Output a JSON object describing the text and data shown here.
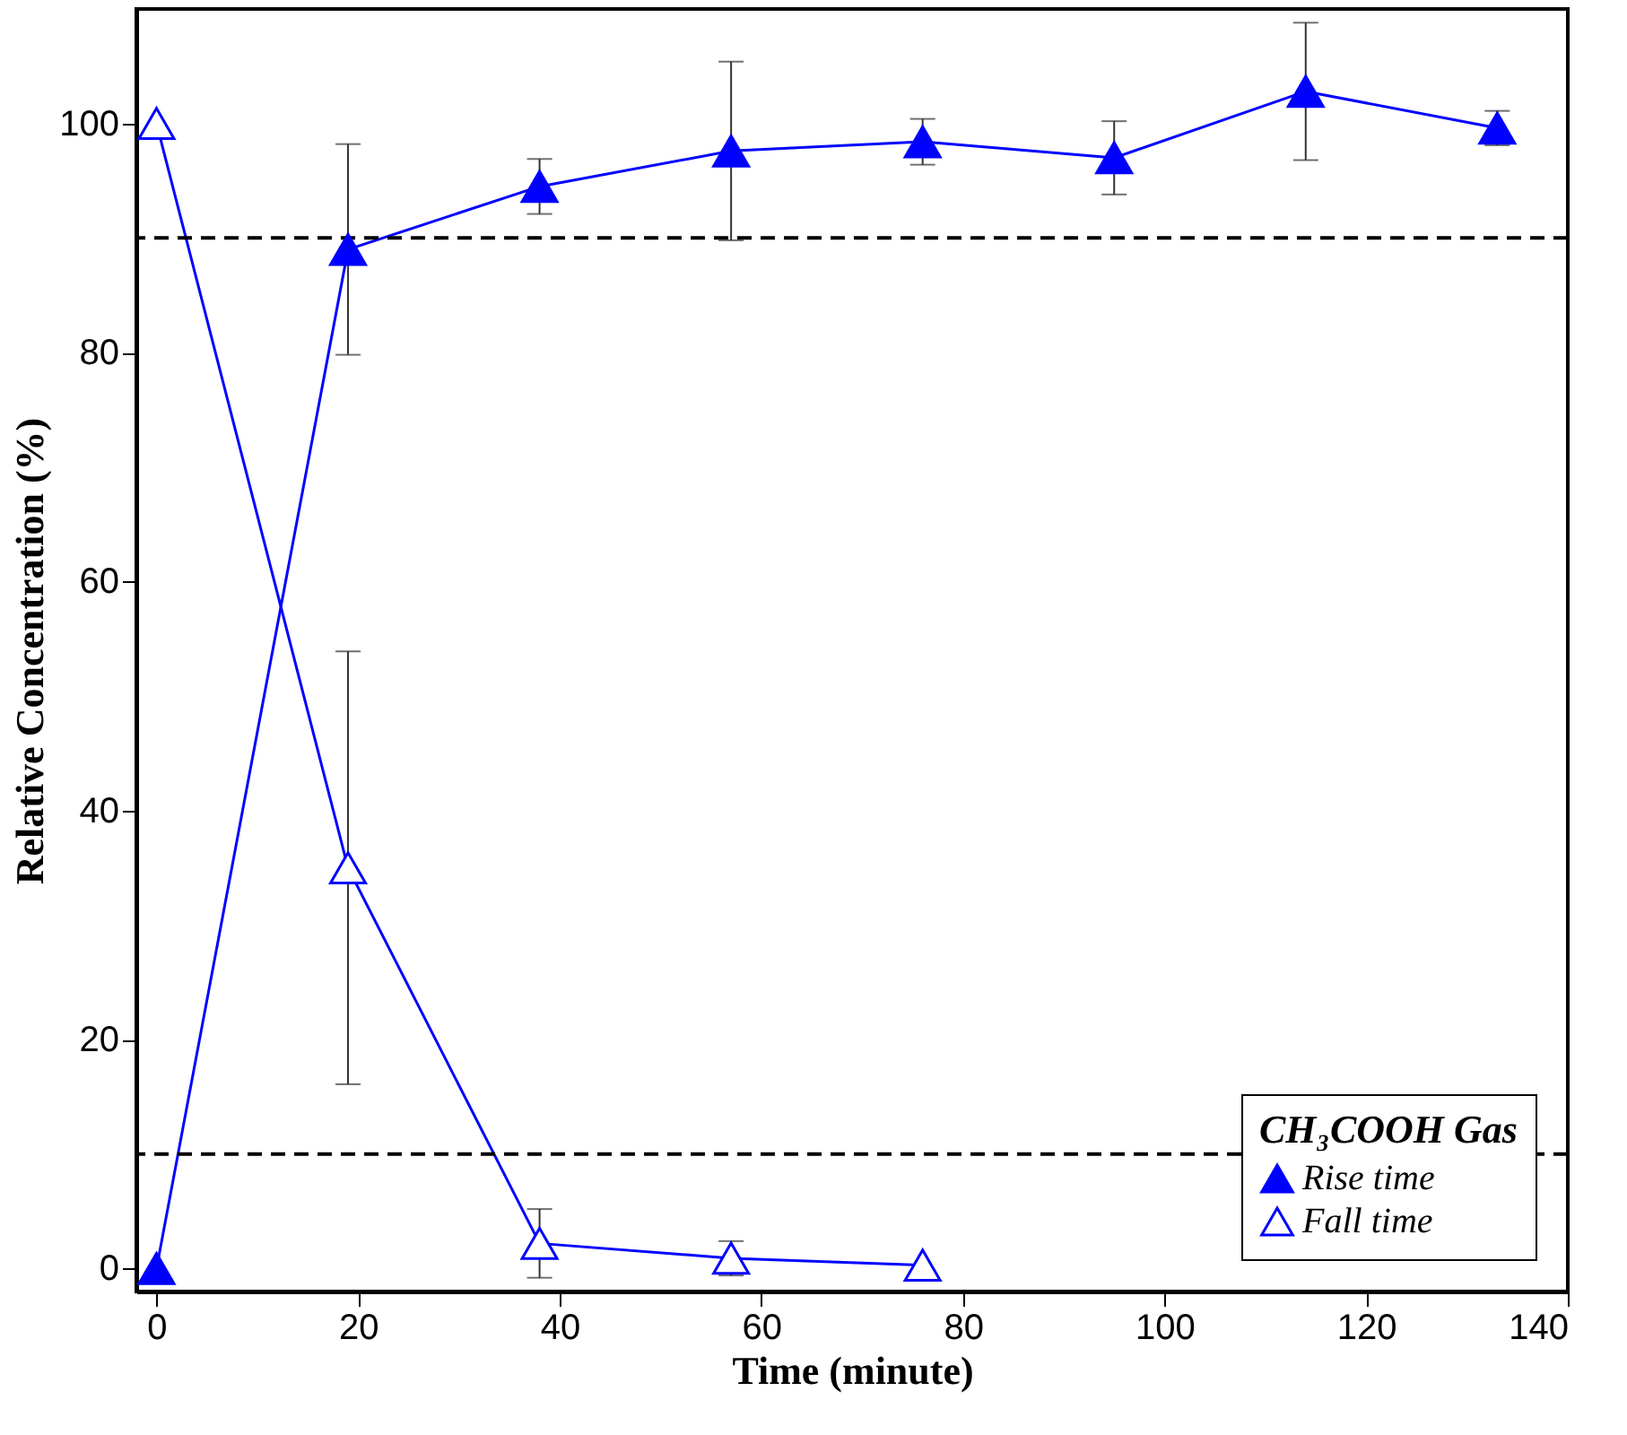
{
  "chart_data": {
    "type": "line",
    "xlabel": "Time (minute)",
    "ylabel": "Relative Concentration (%)",
    "legend_title": "CH₃COOH Gas",
    "xlim": [
      -2,
      140
    ],
    "xticks": [
      0,
      20,
      40,
      60,
      80,
      100,
      120,
      140
    ],
    "ylim": [
      -2,
      110
    ],
    "yticks": [
      0,
      20,
      40,
      60,
      80,
      100
    ],
    "grid": false,
    "legend": "bottom right",
    "line_style": "solid",
    "marker": "triangle",
    "series": [
      {
        "name": "Rise time",
        "color": "#0000ff",
        "x": [
          0,
          19,
          38,
          57,
          76,
          95,
          114,
          133
        ],
        "values": [
          0,
          89,
          94.5,
          97.6,
          98.4,
          97,
          102.8,
          99.6
        ],
        "errors": [
          null,
          9.2,
          2.4,
          7.8,
          2,
          3.2,
          6,
          1.5
        ]
      },
      {
        "name": "Fall time",
        "color": "#0000ff",
        "x": [
          0,
          19,
          38,
          57,
          76
        ],
        "values": [
          100,
          35,
          2.2,
          0.9,
          0.3
        ],
        "errors": [
          null,
          18.9,
          3,
          1.5,
          null
        ]
      }
    ],
    "ref_lines": [
      {
        "axis": "y",
        "value": 90,
        "color": "#000000",
        "line_style": "dashed"
      },
      {
        "axis": "y",
        "value": 10,
        "color": "#000000",
        "line_style": "dashed"
      }
    ]
  }
}
